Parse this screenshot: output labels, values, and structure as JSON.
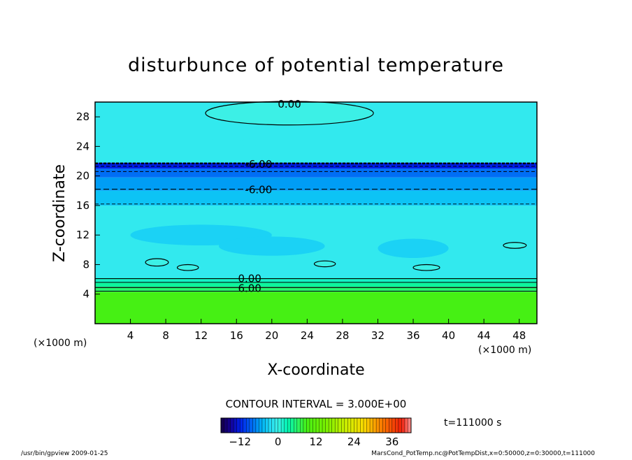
{
  "chart_data": {
    "type": "heatmap",
    "title": "disturbunce of potential temperature",
    "xlabel": "X-coordinate",
    "ylabel": "Z-coordinate",
    "x_unit": "(×1000 m)",
    "y_unit": "(×1000 m)",
    "xlim": [
      0,
      50
    ],
    "ylim": [
      0,
      30
    ],
    "x_ticks": [
      4,
      8,
      12,
      16,
      20,
      24,
      28,
      32,
      36,
      40,
      44,
      48
    ],
    "y_ticks": [
      4,
      8,
      12,
      16,
      20,
      24,
      28
    ],
    "contour_interval_label": "CONTOUR INTERVAL = 3.000E+00",
    "contour_labels": [
      {
        "text": "0.00",
        "x": 22,
        "z": 29.7
      },
      {
        "text": "-6.00",
        "x": 18.5,
        "z": 21.6
      },
      {
        "text": "-6.00",
        "x": 18.5,
        "z": 18.1
      },
      {
        "text": "0.00",
        "x": 17.5,
        "z": 6.1
      },
      {
        "text": "6.00",
        "x": 17.5,
        "z": 4.8
      }
    ],
    "layers": [
      {
        "z0": 0.0,
        "z1": 4.3,
        "value": 9
      },
      {
        "z0": 4.3,
        "z1": 5.0,
        "value": 6
      },
      {
        "z0": 5.0,
        "z1": 5.6,
        "value": 4
      },
      {
        "z0": 5.6,
        "z1": 6.2,
        "value": 2
      },
      {
        "z0": 6.2,
        "z1": 16.0,
        "value": -1
      },
      {
        "z0": 16.0,
        "z1": 18.0,
        "value": -4
      },
      {
        "z0": 18.0,
        "z1": 19.8,
        "value": -6
      },
      {
        "z0": 19.8,
        "z1": 21.0,
        "value": -8
      },
      {
        "z0": 21.0,
        "z1": 21.8,
        "value": -12
      },
      {
        "z0": 21.8,
        "z1": 30.0,
        "value": -1
      }
    ],
    "colorbar": {
      "min": -18,
      "max": 42,
      "tick_values": [
        -12,
        0,
        12,
        24,
        36
      ],
      "tick_labels": [
        "−12",
        "0",
        "12",
        "24",
        "36"
      ]
    },
    "time_label": "t=111000 s"
  },
  "footer": {
    "left": "/usr/bin/gpview   2009-01-25",
    "right": "MarsCond_PotTemp.nc@PotTempDist,x=0:50000,z=0:30000,t=111000"
  }
}
